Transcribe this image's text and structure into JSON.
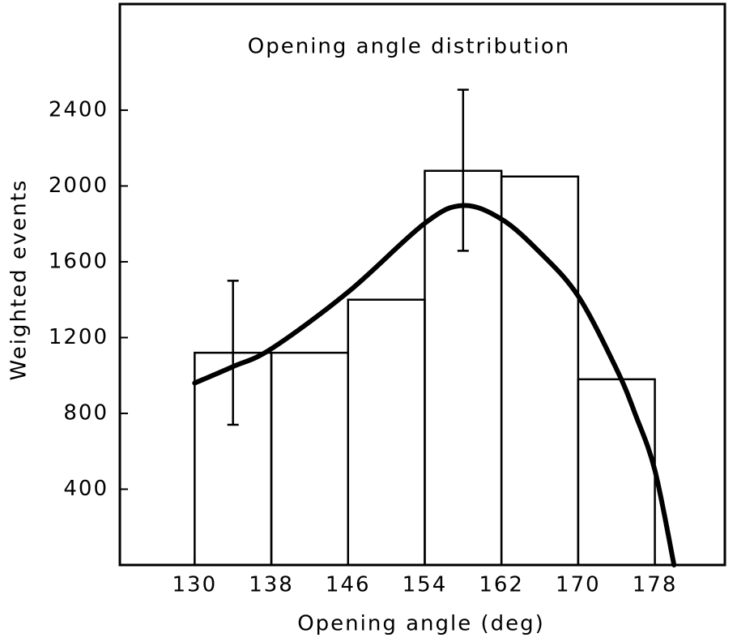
{
  "chart_data": {
    "type": "histogram",
    "title": "Opening angle distribution",
    "xlabel": "Opening angle   (deg)",
    "ylabel": "Weighted events",
    "bins": [
      130,
      138,
      146,
      154,
      162,
      170,
      178
    ],
    "counts": [
      1120,
      1120,
      1400,
      2080,
      2050,
      980
    ],
    "color": "#000000",
    "error_bars": {
      "x": [
        134,
        158
      ],
      "values": [
        1120,
        2083
      ],
      "errors": [
        380,
        425
      ]
    },
    "fit": {
      "x": [
        130,
        134,
        138,
        146,
        154,
        158,
        162,
        166,
        170,
        174,
        176,
        178,
        180
      ],
      "values": [
        960,
        1047,
        1141,
        1440,
        1803,
        1897,
        1825,
        1650,
        1419,
        1034,
        790,
        500,
        0
      ]
    },
    "xlim": [
      122.2,
      185.3
    ],
    "ylim": [
      0,
      2960
    ],
    "xticks": [
      130,
      138,
      146,
      154,
      162,
      170,
      178
    ],
    "yticks": [
      400,
      800,
      1200,
      1600,
      2000,
      2400
    ]
  }
}
